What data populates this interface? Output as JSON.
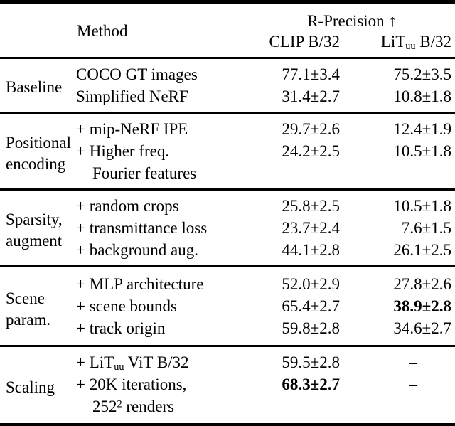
{
  "colors": {
    "text": "#000000",
    "background": "#ffffff",
    "rule": "#000000"
  },
  "dash_char": "–",
  "header": {
    "method_label": "Method",
    "metric_label": "R-Precision ↑",
    "col_clip": "CLIP B/32",
    "col_lit_segments": [
      {
        "t": "LiT"
      },
      {
        "sub": "uu"
      },
      {
        "t": " B/32"
      }
    ]
  },
  "groups": [
    {
      "label_lines": [
        "Baseline"
      ],
      "rows": [
        {
          "method": [
            {
              "t": "COCO GT images"
            }
          ],
          "clip": {
            "v": "77.1±3.4"
          },
          "lit": {
            "v": "75.2±3.5"
          }
        },
        {
          "method": [
            {
              "t": "Simplified NeRF"
            }
          ],
          "clip": {
            "v": "31.4±2.7"
          },
          "lit": {
            "v": "10.8±1.8"
          }
        }
      ]
    },
    {
      "label_lines": [
        "Positional",
        "encoding"
      ],
      "rows": [
        {
          "method": [
            {
              "t": "+ mip-NeRF IPE"
            }
          ],
          "clip": {
            "v": "29.7±2.6"
          },
          "lit": {
            "v": "12.4±1.9"
          }
        },
        {
          "method": [
            {
              "t": "+ Higher freq."
            }
          ],
          "clip": {
            "v": "24.2±2.5"
          },
          "lit": {
            "v": "10.5±1.8"
          }
        },
        {
          "method": [
            {
              "t": "Fourier features"
            }
          ],
          "indent": true,
          "clip": null,
          "lit": null
        }
      ]
    },
    {
      "label_lines": [
        "Sparsity,",
        "augment"
      ],
      "rows": [
        {
          "method": [
            {
              "t": "+ random crops"
            }
          ],
          "clip": {
            "v": "25.8±2.5"
          },
          "lit": {
            "v": "10.5±1.8"
          }
        },
        {
          "method": [
            {
              "t": "+ transmittance loss"
            }
          ],
          "clip": {
            "v": "23.7±2.4"
          },
          "lit": {
            "v": "7.6±1.5"
          }
        },
        {
          "method": [
            {
              "t": "+ background aug."
            }
          ],
          "clip": {
            "v": "44.1±2.8"
          },
          "lit": {
            "v": "26.1±2.5"
          }
        }
      ]
    },
    {
      "label_lines": [
        "Scene",
        "param."
      ],
      "rows": [
        {
          "method": [
            {
              "t": "+ MLP architecture"
            }
          ],
          "clip": {
            "v": "52.0±2.9"
          },
          "lit": {
            "v": "27.8±2.6"
          }
        },
        {
          "method": [
            {
              "t": "+ scene bounds"
            }
          ],
          "clip": {
            "v": "65.4±2.7"
          },
          "lit": {
            "v": "38.9±2.8",
            "bold": true
          }
        },
        {
          "method": [
            {
              "t": "+ track origin"
            }
          ],
          "clip": {
            "v": "59.8±2.8"
          },
          "lit": {
            "v": "34.6±2.7"
          }
        }
      ]
    },
    {
      "label_lines": [
        "Scaling"
      ],
      "rows": [
        {
          "method": [
            {
              "t": "+ LiT"
            },
            {
              "sub": "uu"
            },
            {
              "t": " ViT B/32"
            }
          ],
          "clip": {
            "v": "59.5±2.8"
          },
          "lit": {
            "dash": true
          }
        },
        {
          "method": [
            {
              "t": "+ 20K iterations,"
            }
          ],
          "clip": {
            "v": "68.3±2.7",
            "bold": true
          },
          "lit": {
            "dash": true
          }
        },
        {
          "method": [
            {
              "t": "252"
            },
            {
              "sup": "2"
            },
            {
              "t": " renders"
            }
          ],
          "indent": true,
          "clip": null,
          "lit": null
        }
      ]
    }
  ]
}
